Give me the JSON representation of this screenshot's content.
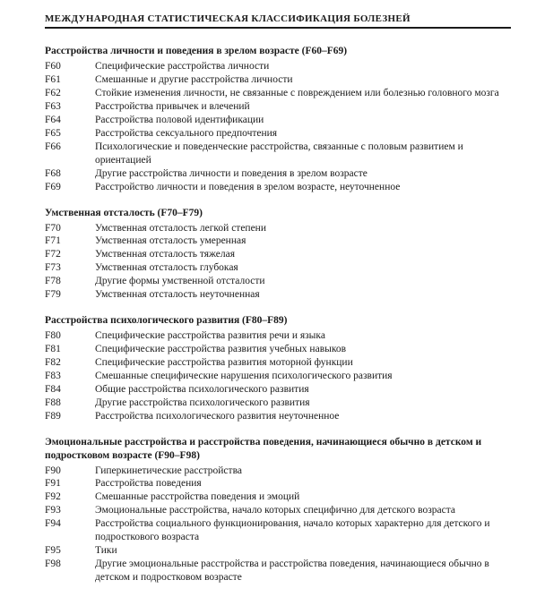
{
  "header": "МЕЖДУНАРОДНАЯ СТАТИСТИЧЕСКАЯ КЛАССИФИКАЦИЯ БОЛЕЗНЕЙ",
  "sections": [
    {
      "title": "Расстройства личности и поведения в зрелом возрасте (F60–F69)",
      "entries": [
        {
          "code": "F60",
          "desc": "Специфические расстройства личности"
        },
        {
          "code": "F61",
          "desc": "Смешанные и другие расстройства личности"
        },
        {
          "code": "F62",
          "desc": "Стойкие изменения личности, не связанные с повреждением или болезнью головного мозга"
        },
        {
          "code": "F63",
          "desc": "Расстройства привычек и влечений"
        },
        {
          "code": "F64",
          "desc": "Расстройства половой идентификации"
        },
        {
          "code": "F65",
          "desc": "Расстройства сексуального предпочтения"
        },
        {
          "code": "F66",
          "desc": "Психологические и поведенческие расстройства, связанные с половым развитием и ориентацией"
        },
        {
          "code": "F68",
          "desc": "Другие расстройства личности и поведения в зрелом возрасте"
        },
        {
          "code": "F69",
          "desc": "Расстройство личности и поведения в зрелом возрасте, неуточненное"
        }
      ]
    },
    {
      "title": "Умственная отсталость (F70–F79)",
      "entries": [
        {
          "code": "F70",
          "desc": "Умственная отсталость легкой степени"
        },
        {
          "code": "F71",
          "desc": "Умственная отсталость умеренная"
        },
        {
          "code": "F72",
          "desc": "Умственная отсталость тяжелая"
        },
        {
          "code": "F73",
          "desc": "Умственная отсталость глубокая"
        },
        {
          "code": "F78",
          "desc": "Другие формы умственной отсталости"
        },
        {
          "code": "F79",
          "desc": "Умственная отсталость неуточненная"
        }
      ]
    },
    {
      "title": "Расстройства психологического развития (F80–F89)",
      "entries": [
        {
          "code": "F80",
          "desc": "Специфические расстройства развития речи и языка"
        },
        {
          "code": "F81",
          "desc": "Специфические расстройства развития учебных навыков"
        },
        {
          "code": "F82",
          "desc": "Специфические расстройства развития моторной функции"
        },
        {
          "code": "F83",
          "desc": "Смешанные специфические нарушения психологического развития"
        },
        {
          "code": "F84",
          "desc": "Общие расстройства психологического развития"
        },
        {
          "code": "F88",
          "desc": "Другие расстройства психологического развития"
        },
        {
          "code": "F89",
          "desc": "Расстройства психологического развития неуточненное"
        }
      ]
    },
    {
      "title": "Эмоциональные расстройства и расстройства поведения, начинающиеся обычно в детском и подростковом возрасте (F90–F98)",
      "entries": [
        {
          "code": "F90",
          "desc": "Гиперкинетические расстройства"
        },
        {
          "code": "F91",
          "desc": "Расстройства поведения"
        },
        {
          "code": "F92",
          "desc": "Смешанные расстройства поведения и эмоций"
        },
        {
          "code": "F93",
          "desc": "Эмоциональные расстройства, начало которых специфично для детского возраста"
        },
        {
          "code": "F94",
          "desc": "Расстройства социального функционирования, начало которых характерно для детского и подросткового возраста"
        },
        {
          "code": "F95",
          "desc": "Тики"
        },
        {
          "code": "F98",
          "desc": "Другие эмоциональные расстройства и расстройства поведения, начинающиеся обычно в детском и подростковом возрасте"
        }
      ]
    }
  ]
}
